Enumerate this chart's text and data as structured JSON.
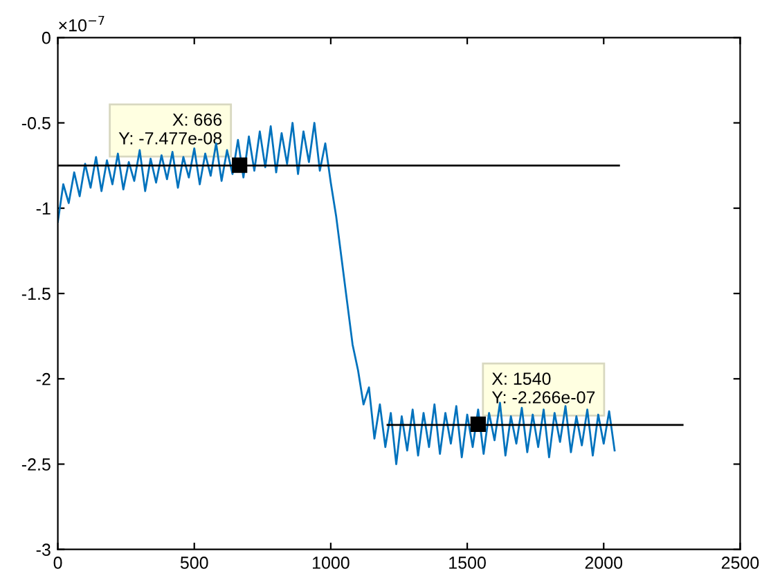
{
  "chart_data": {
    "type": "line",
    "xlim": [
      0,
      2500
    ],
    "xticks": [
      0,
      500,
      1000,
      1500,
      2000,
      2500
    ],
    "ylim": [
      -3,
      0
    ],
    "yticks": [
      -3,
      -2.5,
      -2,
      -1.5,
      -1,
      -0.5,
      0
    ],
    "grid": false,
    "legend": false,
    "marker": "none",
    "line_style": "solid",
    "series": [
      {
        "color": "#0072bd",
        "x": [
          0,
          20,
          40,
          60,
          80,
          100,
          120,
          140,
          160,
          180,
          200,
          220,
          240,
          260,
          280,
          300,
          320,
          340,
          360,
          380,
          400,
          420,
          440,
          460,
          480,
          500,
          520,
          540,
          560,
          580,
          600,
          620,
          640,
          660,
          680,
          700,
          720,
          740,
          760,
          780,
          800,
          820,
          840,
          860,
          880,
          900,
          920,
          940,
          960,
          980,
          1000,
          1020,
          1040,
          1060,
          1080,
          1100,
          1120,
          1140,
          1160,
          1180,
          1200,
          1220,
          1240,
          1260,
          1280,
          1300,
          1320,
          1340,
          1360,
          1380,
          1400,
          1420,
          1440,
          1460,
          1480,
          1500,
          1520,
          1540,
          1560,
          1580,
          1600,
          1620,
          1640,
          1660,
          1680,
          1700,
          1720,
          1740,
          1760,
          1780,
          1800,
          1820,
          1840,
          1860,
          1880,
          1900,
          1920,
          1940,
          1960,
          1980,
          2000,
          2020,
          2040
        ],
        "values": [
          -1.08,
          -0.86,
          -0.97,
          -0.79,
          -0.93,
          -0.74,
          -0.88,
          -0.7,
          -0.9,
          -0.72,
          -0.86,
          -0.68,
          -0.89,
          -0.73,
          -0.84,
          -0.66,
          -0.9,
          -0.71,
          -0.85,
          -0.69,
          -0.83,
          -0.67,
          -0.88,
          -0.7,
          -0.82,
          -0.65,
          -0.86,
          -0.68,
          -0.81,
          -0.62,
          -0.84,
          -0.66,
          -0.8,
          -0.6,
          -0.82,
          -0.58,
          -0.78,
          -0.55,
          -0.76,
          -0.52,
          -0.79,
          -0.56,
          -0.74,
          -0.5,
          -0.8,
          -0.55,
          -0.73,
          -0.5,
          -0.78,
          -0.62,
          -0.85,
          -1.05,
          -1.3,
          -1.55,
          -1.8,
          -1.95,
          -2.15,
          -2.05,
          -2.35,
          -2.15,
          -2.4,
          -2.2,
          -2.5,
          -2.22,
          -2.42,
          -2.18,
          -2.45,
          -2.2,
          -2.4,
          -2.15,
          -2.44,
          -2.2,
          -2.38,
          -2.16,
          -2.46,
          -2.21,
          -2.4,
          -2.18,
          -2.44,
          -2.2,
          -2.36,
          -2.14,
          -2.45,
          -2.22,
          -2.38,
          -2.17,
          -2.43,
          -2.21,
          -2.4,
          -2.18,
          -2.46,
          -2.2,
          -2.37,
          -2.16,
          -2.43,
          -2.22,
          -2.39,
          -2.18,
          -2.45,
          -2.21,
          -2.38,
          -2.19,
          -2.42
        ]
      },
      {
        "color": "#000000",
        "x": [
          0,
          2056
        ],
        "values": [
          -0.75,
          -0.75
        ]
      },
      {
        "color": "#000000",
        "x": [
          1208,
          2289
        ],
        "values": [
          -2.27,
          -2.27
        ]
      }
    ],
    "annotations": [
      "×10$^{−7}$",
      {
        "text": "X: 666\nY: -7.477e-08",
        "x": 666,
        "y": -0.7477
      },
      {
        "text": "X: 1540\nY: -2.266e-07",
        "x": 1540,
        "y": -2.266
      }
    ]
  }
}
